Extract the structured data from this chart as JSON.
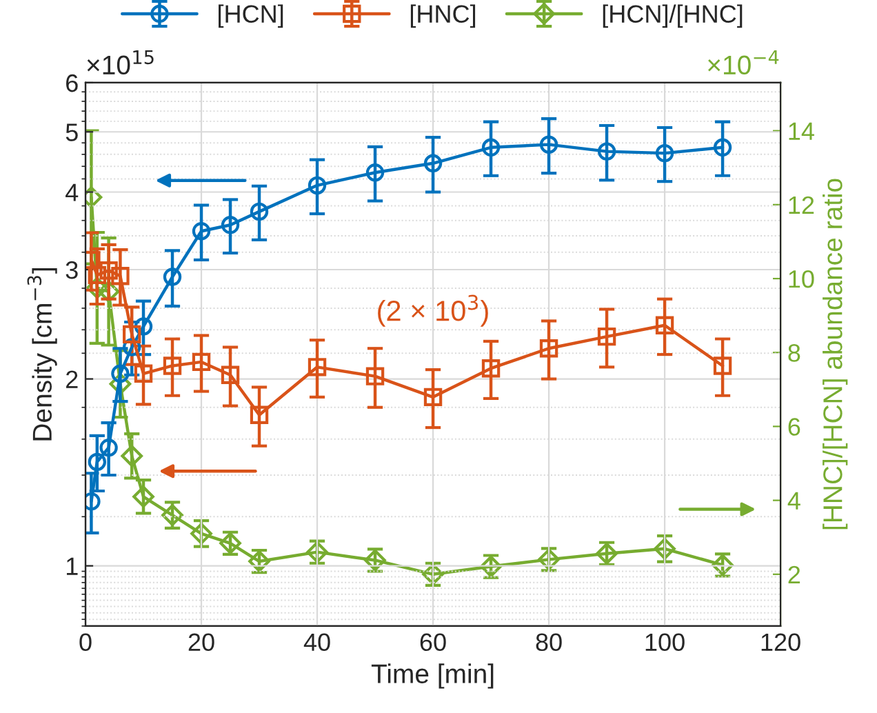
{
  "chart_data": {
    "type": "line",
    "xlabel": "Time [min]",
    "ylabel": "Density [cm$^{−3}$]",
    "y2label": "[HNC]/[HCN] abundance ratio",
    "x": [
      1,
      2,
      4,
      6,
      8,
      10,
      15,
      20,
      25,
      30,
      40,
      50,
      60,
      70,
      80,
      90,
      100,
      110
    ],
    "series": [
      {
        "name": "[HCN]",
        "color": "#0072bd",
        "marker": "circle",
        "values": [
          1.27,
          1.47,
          1.55,
          2.04,
          2.25,
          2.43,
          2.92,
          3.46,
          3.54,
          3.72,
          4.1,
          4.3,
          4.45,
          4.72,
          4.77,
          4.65,
          4.62,
          4.72
        ],
        "errors": [
          0.14,
          0.15,
          0.15,
          0.2,
          0.22,
          0.24,
          0.3,
          0.35,
          0.35,
          0.37,
          0.41,
          0.43,
          0.45,
          0.47,
          0.48,
          0.47,
          0.46,
          0.47
        ]
      },
      {
        "name": "[HNC]",
        "color": "#d95319",
        "marker": "square",
        "values": [
          3.11,
          2.94,
          2.99,
          2.93,
          2.36,
          2.04,
          2.1,
          2.13,
          2.03,
          1.75,
          2.09,
          2.02,
          1.87,
          2.08,
          2.24,
          2.34,
          2.44,
          2.1
        ],
        "errors": [
          0.33,
          0.3,
          0.3,
          0.3,
          0.25,
          0.22,
          0.22,
          0.22,
          0.22,
          0.19,
          0.22,
          0.22,
          0.2,
          0.22,
          0.24,
          0.25,
          0.25,
          0.22
        ]
      },
      {
        "name": "[HCN]/[HNC]",
        "color": "#77ac30",
        "marker": "diamond",
        "axis": "y2",
        "values": [
          12.2,
          9.75,
          9.65,
          7.15,
          5.2,
          4.1,
          3.6,
          3.1,
          2.84,
          2.35,
          2.6,
          2.38,
          2.0,
          2.21,
          2.4,
          2.56,
          2.69,
          2.25
        ],
        "errors": [
          1.8,
          1.5,
          1.45,
          0.9,
          0.6,
          0.45,
          0.35,
          0.35,
          0.3,
          0.3,
          0.3,
          0.3,
          0.3,
          0.3,
          0.3,
          0.3,
          0.35,
          0.3
        ]
      }
    ],
    "xlim": [
      0,
      120
    ],
    "xticks": [
      0,
      20,
      40,
      60,
      80,
      100,
      120
    ],
    "log": "y",
    "ylim": [
      0.8,
      6
    ],
    "yticks": [
      1,
      2,
      3,
      4,
      5,
      6
    ],
    "y2lim": [
      0.6,
      15.3
    ],
    "y2ticks": [
      2,
      4,
      6,
      8,
      10,
      12,
      14
    ],
    "annotations": [
      "×10$^{15}$",
      "×10$^{−4}$",
      "(2 × 10$^{3}$)"
    ],
    "grid": true,
    "legend": "top",
    "line_style": "solid"
  }
}
